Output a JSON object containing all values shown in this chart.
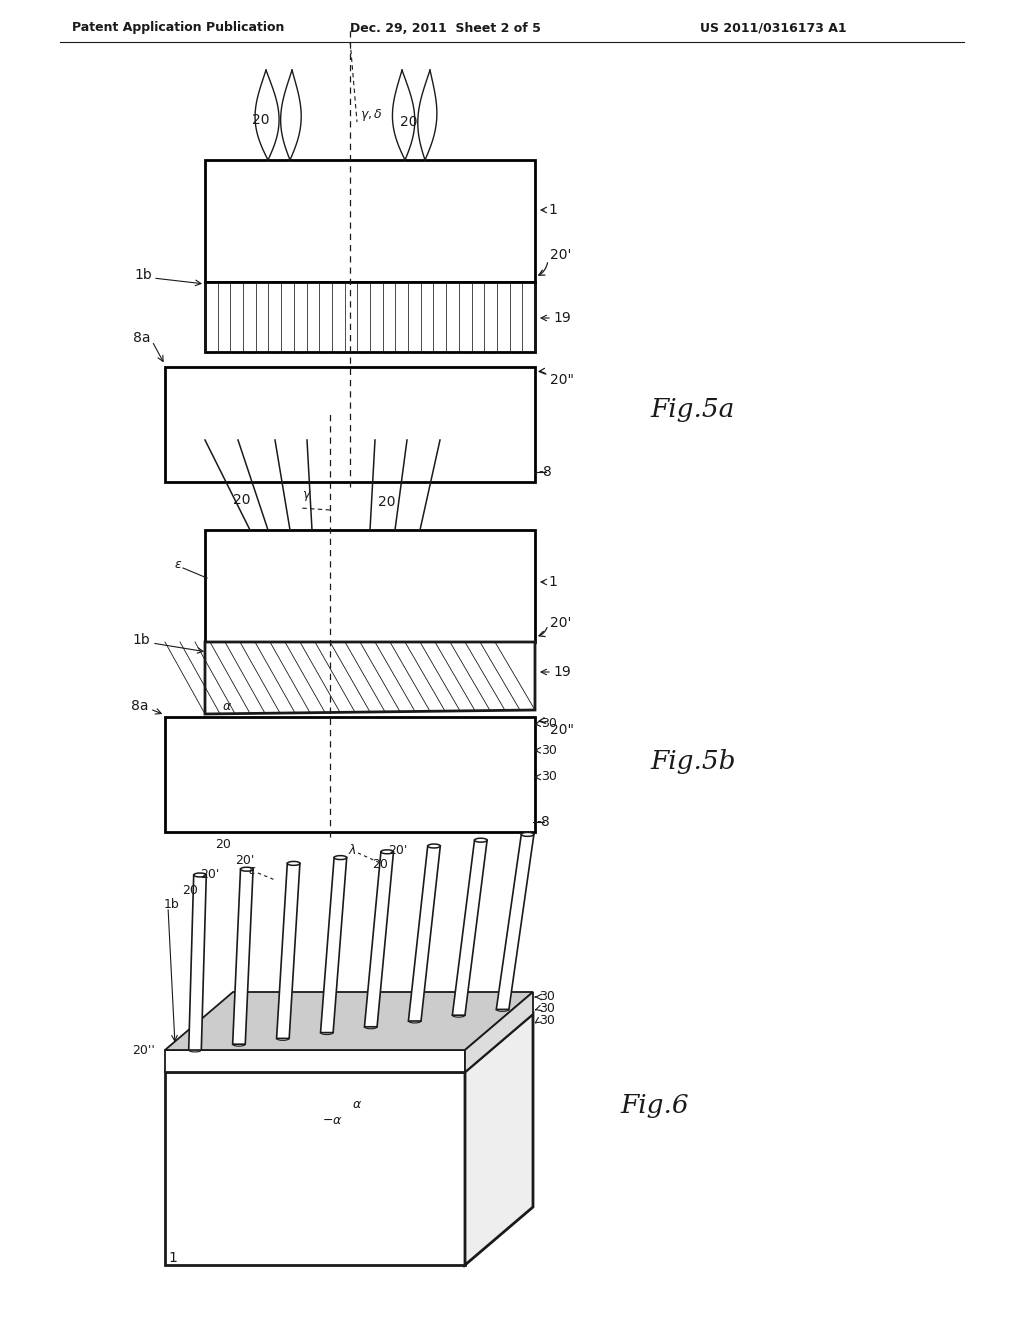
{
  "bg_color": "#ffffff",
  "line_color": "#1a1a1a",
  "header_left": "Patent Application Publication",
  "header_mid": "Dec. 29, 2011  Sheet 2 of 5",
  "header_right": "US 2011/0316173 A1",
  "fig5a_label": "Fig.5a",
  "fig5b_label": "Fig.5b",
  "fig6_label": "Fig.6"
}
